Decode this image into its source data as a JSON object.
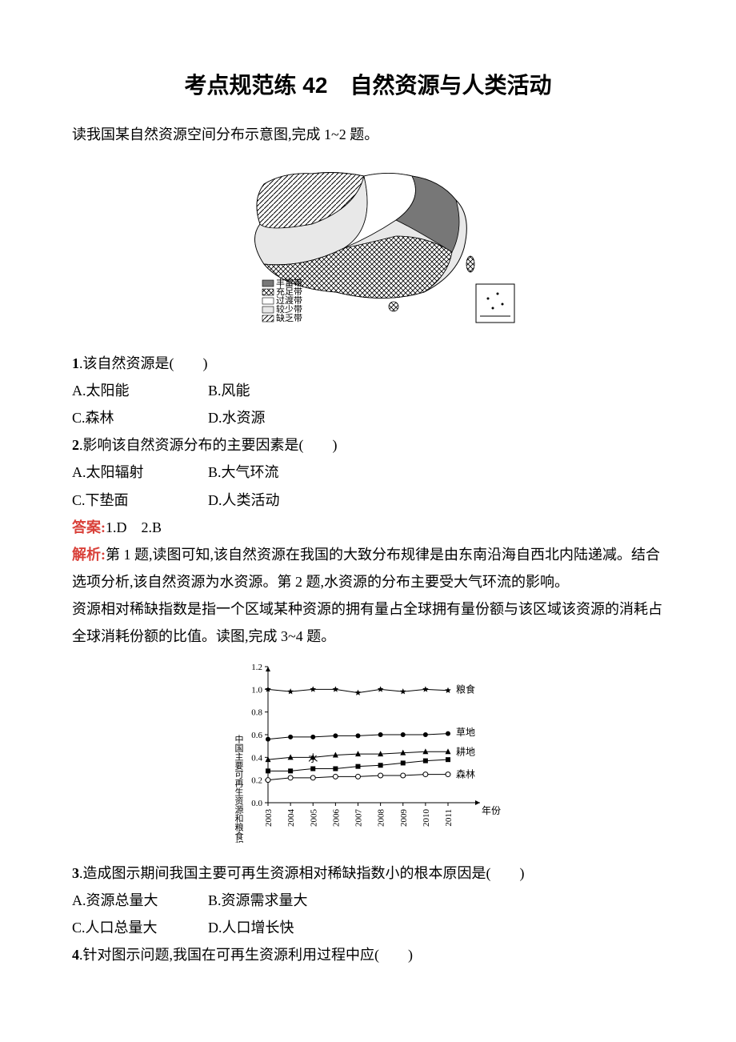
{
  "title": "考点规范练 42　自然资源与人类活动",
  "intro1": "读我国某自然资源空间分布示意图,完成 1~2 题。",
  "map": {
    "legend": [
      "丰富带",
      "充足带",
      "过渡带",
      "较少带",
      "缺乏带"
    ]
  },
  "q1": {
    "stem": ".该自然资源是(　　)",
    "opts": [
      "A.太阳能",
      "B.风能",
      "C.森林",
      "D.水资源"
    ]
  },
  "q2": {
    "stem": ".影响该自然资源分布的主要因素是(　　)",
    "opts": [
      "A.太阳辐射",
      "B.大气环流",
      "C.下垫面",
      "D.人类活动"
    ]
  },
  "answer12": "1.D　2.B",
  "analysis12": "第 1 题,读图可知,该自然资源在我国的大致分布规律是由东南沿海自西北内陆递减。结合选项分析,该自然资源为水资源。第 2 题,水资源的分布主要受大气环流的影响。",
  "intro2": "资源相对稀缺指数是指一个区域某种资源的拥有量占全球拥有量份额与该区域该资源的消耗占全球消耗份额的比值。读图,完成 3~4 题。",
  "chart": {
    "ylabel": "中国主要可再生资源和粮食相对稀缺指数",
    "xlabel": "年份",
    "ylim": [
      0,
      1.2
    ],
    "yticks": [
      0,
      0.2,
      0.4,
      0.6,
      0.8,
      1.0,
      1.2
    ],
    "xticks": [
      "2003",
      "2004",
      "2005",
      "2006",
      "2007",
      "2008",
      "2009",
      "2010",
      "2011"
    ],
    "series": [
      {
        "name": "粮食",
        "marker": "star",
        "fill": "#000000",
        "values": [
          1.0,
          0.98,
          1.0,
          1.0,
          0.97,
          1.0,
          0.98,
          1.0,
          0.99
        ]
      },
      {
        "name": "草地",
        "marker": "circle",
        "fill": "#000000",
        "values": [
          0.56,
          0.58,
          0.58,
          0.59,
          0.59,
          0.6,
          0.6,
          0.6,
          0.61
        ]
      },
      {
        "name": "耕地",
        "marker": "triangle",
        "fill": "#000000",
        "values": [
          0.38,
          0.4,
          0.4,
          0.42,
          0.43,
          0.43,
          0.44,
          0.45,
          0.45
        ]
      },
      {
        "name": "水",
        "marker": "square",
        "fill": "#000000",
        "values": [
          0.28,
          0.28,
          0.3,
          0.3,
          0.32,
          0.33,
          0.35,
          0.37,
          0.38
        ]
      },
      {
        "name": "森林",
        "marker": "circle-open",
        "fill": "none",
        "values": [
          0.2,
          0.22,
          0.22,
          0.23,
          0.23,
          0.24,
          0.24,
          0.25,
          0.25
        ]
      }
    ],
    "series_label_pos": {
      "粮食": {
        "x": 8.4,
        "y": 1.0
      },
      "草地": {
        "x": 8.4,
        "y": 0.62
      },
      "耕地": {
        "x": 8.4,
        "y": 0.45
      },
      "水": {
        "x": 2.0,
        "y": 0.35
      },
      "森林": {
        "x": 8.4,
        "y": 0.25
      }
    },
    "stroke": "#000000",
    "background": "#ffffff"
  },
  "q3": {
    "stem": ".造成图示期间我国主要可再生资源相对稀缺指数小的根本原因是(　　)",
    "opts": [
      "A.资源总量大",
      "B.资源需求量大",
      "C.人口总量大",
      "D.人口增长快"
    ]
  },
  "q4": {
    "stem": ".针对图示问题,我国在可再生资源利用过程中应(　　)"
  },
  "labels": {
    "answer": "答案:",
    "analysis": "解析:"
  }
}
